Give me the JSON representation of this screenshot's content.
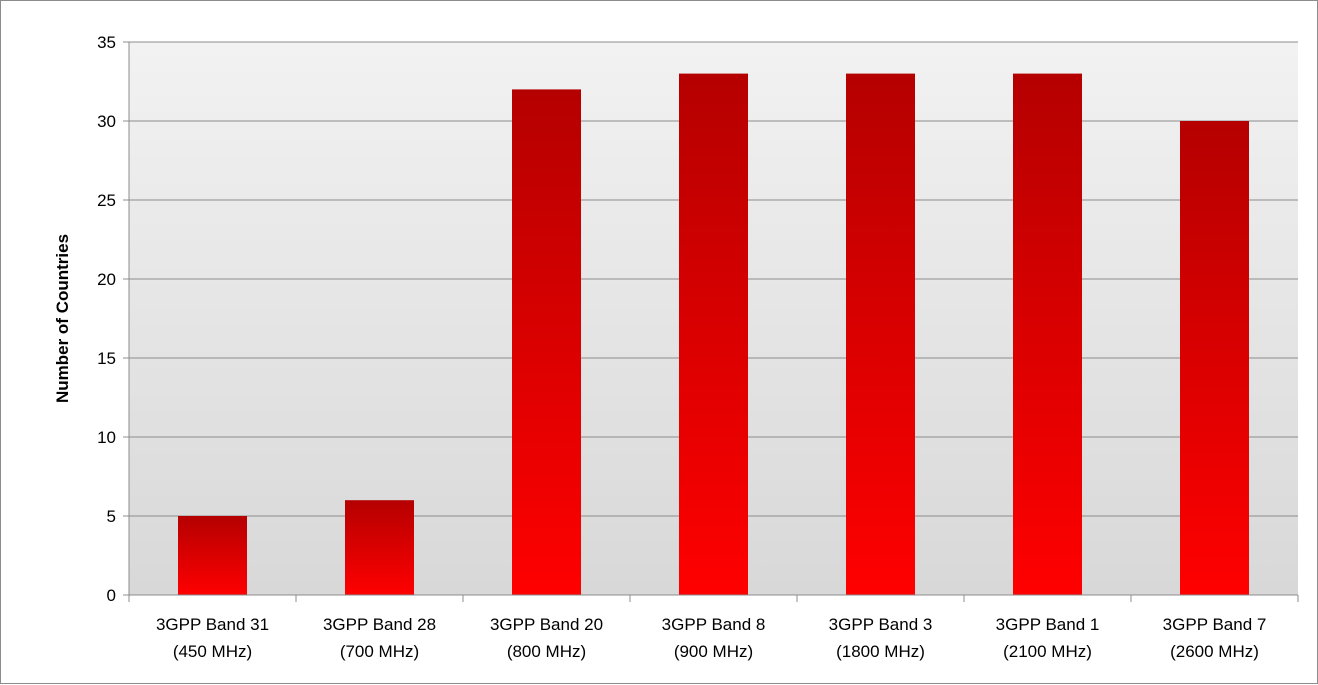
{
  "chart_data": {
    "type": "bar",
    "title": "",
    "xlabel": "",
    "ylabel": "Number of Countries",
    "ylim": [
      0,
      35
    ],
    "yticks": [
      "0",
      "5",
      "10",
      "15",
      "20",
      "25",
      "30",
      "35"
    ],
    "grid": true,
    "legend": "none",
    "categories": [
      [
        "3GPP Band 31",
        "(450 MHz)"
      ],
      [
        "3GPP Band 28",
        "(700 MHz)"
      ],
      [
        "3GPP Band 20",
        "(800 MHz)"
      ],
      [
        "3GPP Band 8",
        "(900 MHz)"
      ],
      [
        "3GPP Band 3",
        "(1800 MHz)"
      ],
      [
        "3GPP Band 1",
        "(2100 MHz)"
      ],
      [
        "3GPP Band 7",
        "(2600 MHz)"
      ]
    ],
    "values": [
      5,
      6,
      32,
      33,
      33,
      33,
      30
    ],
    "colors": {
      "bar_top": "#b50000",
      "bar_bottom": "#ff0000",
      "plot_bg_top": "#f2f2f2",
      "plot_bg_bottom": "#d8d8d8",
      "gridline": "#8c8c8c",
      "axis": "#8c8c8c"
    }
  }
}
